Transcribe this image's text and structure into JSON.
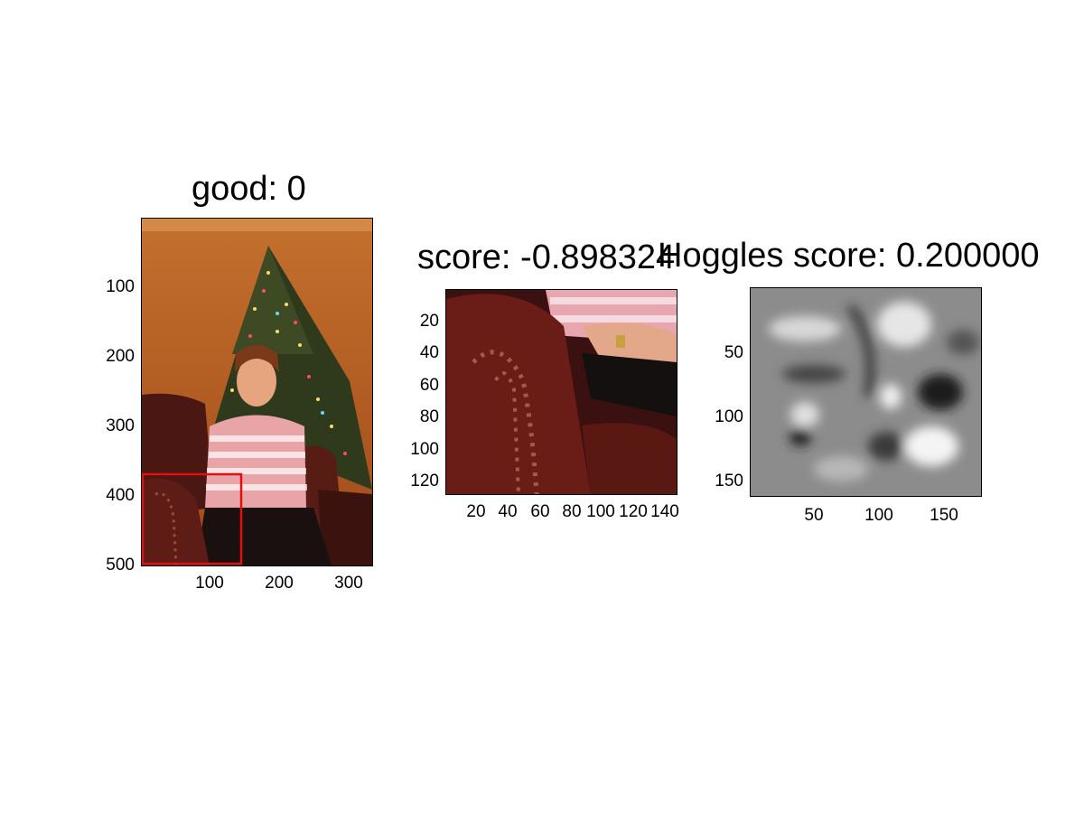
{
  "panels": [
    {
      "title": "good: 0",
      "y_ticks": [
        "100",
        "200",
        "300",
        "400",
        "500"
      ],
      "x_ticks": [
        "100",
        "200",
        "300"
      ],
      "image": "photo of a girl in a pink striped sweater sitting on a leather armchair in front of a lit Christmas tree",
      "highlight_color": "#e01010"
    },
    {
      "title": "score: -0.898324",
      "y_ticks": [
        "20",
        "40",
        "60",
        "80",
        "100",
        "120"
      ],
      "x_ticks": [
        "20",
        "40",
        "60",
        "80",
        "100",
        "120",
        "140"
      ],
      "image": "cropped patch: armchair arm with studs and a hand"
    },
    {
      "title": "Hoggles score: 0.200000",
      "y_ticks": [
        "50",
        "100",
        "150"
      ],
      "x_ticks": [
        "50",
        "100",
        "150"
      ],
      "image": "grayscale HOG inverse visualization"
    }
  ]
}
